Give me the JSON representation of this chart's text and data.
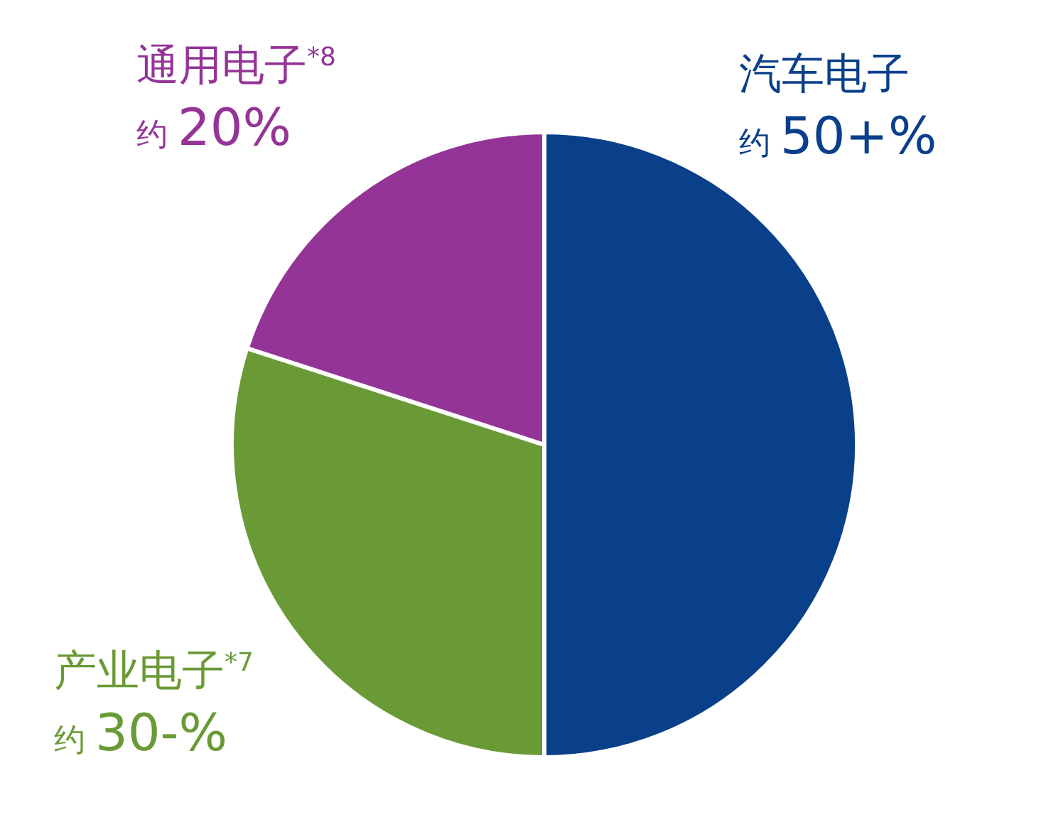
{
  "chart_data": {
    "type": "pie",
    "categories": [
      "汽车电子",
      "产业电子$^{*7}$",
      "通用电子$^{*8}$"
    ],
    "values": [
      50,
      30,
      20
    ],
    "colors": [
      "#0a3f8a",
      "#6a9a35",
      "#943497"
    ],
    "value_labels": [
      "约 50+%",
      "约 30-%",
      "约 20%"
    ]
  }
}
